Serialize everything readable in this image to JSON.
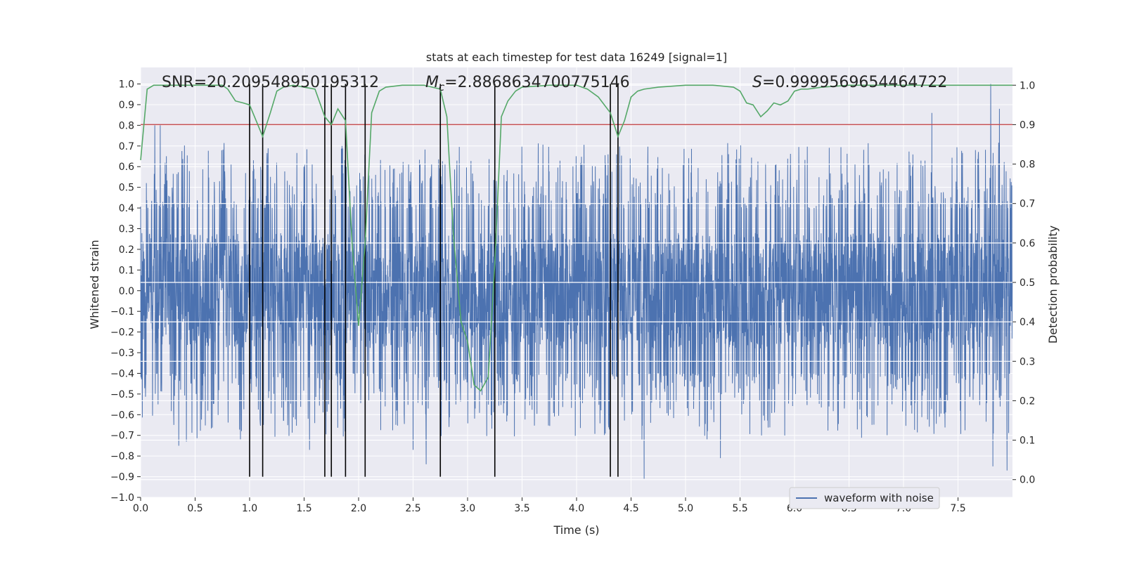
{
  "chart_data": {
    "type": "line",
    "title": "stats at each timestep for test data 16249 [signal=1]",
    "xlabel": "Time (s)",
    "ylabel": "Whitened strain",
    "y2label": "Detection probability",
    "xlim": [
      0,
      8
    ],
    "ylim": [
      -1.0,
      1.08
    ],
    "y2lim": [
      -0.045,
      1.045
    ],
    "x_ticks": [
      0.0,
      0.5,
      1.0,
      1.5,
      2.0,
      2.5,
      3.0,
      3.5,
      4.0,
      4.5,
      5.0,
      5.5,
      6.0,
      6.5,
      7.0,
      7.5
    ],
    "x_tick_labels": [
      "0.0",
      "0.5",
      "1.0",
      "1.5",
      "2.0",
      "2.5",
      "3.0",
      "3.5",
      "4.0",
      "4.5",
      "5.0",
      "5.5",
      "6.0",
      "6.5",
      "7.0",
      "7.5"
    ],
    "y_ticks": [
      1.0,
      0.9,
      0.8,
      0.7,
      0.6,
      0.5,
      0.4,
      0.3,
      0.2,
      0.1,
      0.0,
      -0.1,
      -0.2,
      -0.3,
      -0.4,
      -0.5,
      -0.6,
      -0.7,
      -0.8,
      -0.9,
      -1.0
    ],
    "y_tick_labels": [
      "1.0",
      "0.9",
      "0.8",
      "0.7",
      "0.6",
      "0.5",
      "0.4",
      "0.3",
      "0.2",
      "0.1",
      "0.0",
      "−0.1",
      "−0.2",
      "−0.3",
      "−0.4",
      "−0.5",
      "−0.6",
      "−0.7",
      "−0.8",
      "−0.9",
      "−1.0"
    ],
    "y2_ticks": [
      1.0,
      0.9,
      0.8,
      0.7,
      0.6,
      0.5,
      0.4,
      0.3,
      0.2,
      0.1,
      0.0
    ],
    "y2_tick_labels": [
      "1.0",
      "0.9",
      "0.8",
      "0.7",
      "0.6",
      "0.5",
      "0.4",
      "0.3",
      "0.2",
      "0.1",
      "0.0"
    ],
    "annotations": {
      "snr": "SNR=20.209548950195312",
      "mc_symbol": "M",
      "mc_sub": "c",
      "mc_value": "=2.8868634700775146",
      "s_symbol": "S",
      "s_value": "=0.9999569654464722"
    },
    "legend": {
      "entry": "waveform with noise",
      "position": "lower-right"
    },
    "threshold": {
      "value": 0.9,
      "axis": "y2"
    },
    "vertical_lines": {
      "times": [
        1.0,
        1.12,
        1.69,
        1.75,
        1.88,
        2.06,
        2.75,
        3.25,
        4.31,
        4.38
      ],
      "y_from": -0.9,
      "y_to": 1.0
    },
    "probability": {
      "t": [
        0.0,
        0.06,
        0.12,
        0.25,
        0.5,
        0.75,
        0.8,
        0.87,
        0.94,
        1.0,
        1.06,
        1.12,
        1.19,
        1.25,
        1.31,
        1.4,
        1.5,
        1.6,
        1.69,
        1.75,
        1.81,
        1.88,
        1.94,
        2.0,
        2.06,
        2.12,
        2.19,
        2.25,
        2.4,
        2.6,
        2.75,
        2.81,
        2.87,
        2.94,
        3.0,
        3.06,
        3.12,
        3.19,
        3.25,
        3.31,
        3.37,
        3.44,
        3.5,
        3.75,
        4.0,
        4.1,
        4.2,
        4.31,
        4.38,
        4.44,
        4.5,
        4.56,
        4.62,
        4.75,
        5.0,
        5.25,
        5.44,
        5.5,
        5.56,
        5.62,
        5.69,
        5.75,
        5.81,
        5.87,
        5.94,
        6.0,
        6.06,
        6.12,
        6.25,
        6.5,
        6.75,
        7.0,
        7.25,
        7.5,
        7.75,
        8.0
      ],
      "p": [
        0.81,
        0.99,
        1.0,
        1.0,
        1.0,
        1.0,
        0.99,
        0.96,
        0.955,
        0.95,
        0.91,
        0.87,
        0.93,
        0.985,
        0.995,
        1.0,
        0.995,
        0.99,
        0.92,
        0.9,
        0.94,
        0.91,
        0.6,
        0.39,
        0.6,
        0.93,
        0.985,
        0.995,
        1.0,
        1.0,
        0.99,
        0.92,
        0.62,
        0.4,
        0.35,
        0.24,
        0.225,
        0.26,
        0.55,
        0.92,
        0.96,
        0.985,
        0.995,
        1.0,
        1.0,
        0.99,
        0.97,
        0.93,
        0.87,
        0.91,
        0.97,
        0.985,
        0.99,
        0.995,
        1.0,
        1.0,
        0.995,
        0.985,
        0.955,
        0.95,
        0.92,
        0.935,
        0.955,
        0.95,
        0.96,
        0.985,
        0.99,
        0.99,
        0.995,
        1.0,
        1.0,
        1.0,
        1.0,
        1.0,
        1.0,
        1.0
      ]
    },
    "strain": {
      "description": "noise-like whitened strain series, 4096 samples over 0-8 s",
      "sample_count": 4096,
      "duration": 8.0,
      "seed": 16249,
      "core_amplitude": 0.28,
      "burst_probability": 0.28,
      "burst_range": [
        0.4,
        0.72
      ],
      "highlight_spikes": [
        {
          "t": 0.13,
          "v": 0.8
        },
        {
          "t": 0.16,
          "v": -0.55
        },
        {
          "t": 0.18,
          "v": 0.8
        },
        {
          "t": 0.35,
          "v": -0.75
        },
        {
          "t": 0.42,
          "v": -0.73
        },
        {
          "t": 1.55,
          "v": -0.77
        },
        {
          "t": 2.5,
          "v": -0.77
        },
        {
          "t": 2.62,
          "v": -0.84
        },
        {
          "t": 3.07,
          "v": -0.57
        },
        {
          "t": 4.62,
          "v": -0.91
        },
        {
          "t": 4.6,
          "v": -0.72
        },
        {
          "t": 5.32,
          "v": -0.81
        },
        {
          "t": 7.26,
          "v": 0.86
        },
        {
          "t": 7.8,
          "v": 1.0
        },
        {
          "t": 7.82,
          "v": -0.85
        },
        {
          "t": 7.88,
          "v": 0.88
        },
        {
          "t": 7.95,
          "v": -0.87
        }
      ]
    },
    "colors": {
      "background": "#eaeaf2",
      "grid": "#ffffff",
      "strain": "#4c72b0",
      "probability": "#55a868",
      "threshold": "#c44e52",
      "vlines": "#000000",
      "text": "#262626"
    }
  }
}
